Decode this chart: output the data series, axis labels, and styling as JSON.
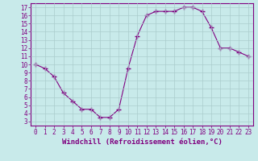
{
  "x": [
    0,
    1,
    2,
    3,
    4,
    5,
    6,
    7,
    8,
    9,
    10,
    11,
    12,
    13,
    14,
    15,
    16,
    17,
    18,
    19,
    20,
    21,
    22,
    23
  ],
  "y": [
    10.0,
    9.5,
    8.5,
    6.5,
    5.5,
    4.5,
    4.5,
    3.5,
    3.5,
    4.5,
    9.5,
    13.5,
    16.0,
    16.5,
    16.5,
    16.5,
    17.0,
    17.0,
    16.5,
    14.5,
    12.0,
    12.0,
    11.5,
    11.0
  ],
  "line_color": "#800080",
  "marker": "+",
  "marker_size": 4,
  "bg_color": "#c8eaea",
  "grid_color": "#aacccc",
  "xlabel": "Windchill (Refroidissement éolien,°C)",
  "xlabel_fontsize": 6.5,
  "tick_fontsize": 5.5,
  "xlim": [
    -0.5,
    23.5
  ],
  "ylim": [
    2.5,
    17.5
  ],
  "yticks": [
    3,
    4,
    5,
    6,
    7,
    8,
    9,
    10,
    11,
    12,
    13,
    14,
    15,
    16,
    17
  ],
  "xticks": [
    0,
    1,
    2,
    3,
    4,
    5,
    6,
    7,
    8,
    9,
    10,
    11,
    12,
    13,
    14,
    15,
    16,
    17,
    18,
    19,
    20,
    21,
    22,
    23
  ]
}
